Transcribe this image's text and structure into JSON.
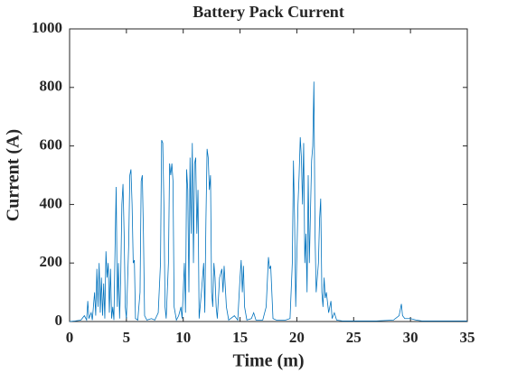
{
  "chart_data": {
    "type": "line",
    "title": "Battery Pack Current",
    "xlabel": "Time (m)",
    "ylabel": "Current (A)",
    "xlim": [
      0,
      35
    ],
    "ylim": [
      0,
      1000
    ],
    "xticks": [
      0,
      5,
      10,
      15,
      20,
      25,
      30,
      35
    ],
    "yticks": [
      0,
      200,
      400,
      600,
      800,
      1000
    ],
    "series": [
      {
        "name": "Current",
        "color": "#0072bd",
        "x": [
          0,
          0.5,
          1,
          1.3,
          1.5,
          1.6,
          1.7,
          1.9,
          2.0,
          2.2,
          2.3,
          2.4,
          2.5,
          2.6,
          2.7,
          2.8,
          2.9,
          3.0,
          3.1,
          3.2,
          3.3,
          3.4,
          3.5,
          3.6,
          3.7,
          3.8,
          3.9,
          4.0,
          4.1,
          4.2,
          4.3,
          4.4,
          4.5,
          4.6,
          4.7,
          4.8,
          4.9,
          5.0,
          5.2,
          5.3,
          5.4,
          5.5,
          5.6,
          5.7,
          5.8,
          6.0,
          6.2,
          6.3,
          6.4,
          6.5,
          6.6,
          6.8,
          7.2,
          7.5,
          7.8,
          8.0,
          8.1,
          8.2,
          8.3,
          8.4,
          8.5,
          8.7,
          8.8,
          8.9,
          9.0,
          9.1,
          9.2,
          9.4,
          9.6,
          9.8,
          9.9,
          10.0,
          10.1,
          10.2,
          10.3,
          10.4,
          10.5,
          10.6,
          10.7,
          10.8,
          10.9,
          11.0,
          11.1,
          11.2,
          11.3,
          11.4,
          11.6,
          11.8,
          11.9,
          12.0,
          12.1,
          12.2,
          12.3,
          12.4,
          12.5,
          12.6,
          12.7,
          12.8,
          12.9,
          13.0,
          13.2,
          13.4,
          13.5,
          13.6,
          13.8,
          14.0,
          14.5,
          14.8,
          15.0,
          15.1,
          15.2,
          15.3,
          15.4,
          15.6,
          16.0,
          16.2,
          16.4,
          17.0,
          17.3,
          17.5,
          17.6,
          17.7,
          17.8,
          17.9,
          18.2,
          19.0,
          19.4,
          19.6,
          19.7,
          19.8,
          19.9,
          20.1,
          20.2,
          20.3,
          20.4,
          20.5,
          20.6,
          20.7,
          20.8,
          20.9,
          21.0,
          21.1,
          21.3,
          21.4,
          21.5,
          21.6,
          21.7,
          21.9,
          22.0,
          22.1,
          22.2,
          22.3,
          22.4,
          22.5,
          22.6,
          22.8,
          23.0,
          23.1,
          23.3,
          23.5,
          24,
          25,
          27,
          28.5,
          29.0,
          29.2,
          29.3,
          29.5,
          30,
          30.5,
          31,
          35
        ],
        "values": [
          0,
          2,
          5,
          20,
          5,
          70,
          10,
          30,
          5,
          100,
          20,
          180,
          50,
          200,
          30,
          150,
          20,
          130,
          10,
          240,
          150,
          200,
          30,
          180,
          10,
          50,
          5,
          250,
          460,
          50,
          200,
          10,
          150,
          400,
          470,
          300,
          50,
          10,
          260,
          500,
          520,
          400,
          200,
          210,
          10,
          5,
          100,
          480,
          500,
          300,
          20,
          5,
          10,
          5,
          30,
          200,
          620,
          610,
          400,
          50,
          10,
          200,
          540,
          500,
          540,
          480,
          50,
          5,
          20,
          50,
          10,
          100,
          200,
          30,
          520,
          450,
          100,
          560,
          300,
          610,
          200,
          540,
          560,
          300,
          450,
          10,
          100,
          200,
          30,
          350,
          590,
          560,
          450,
          500,
          100,
          50,
          200,
          150,
          50,
          10,
          150,
          180,
          100,
          190,
          50,
          5,
          20,
          5,
          150,
          210,
          100,
          190,
          50,
          5,
          10,
          30,
          5,
          5,
          50,
          220,
          180,
          190,
          100,
          10,
          5,
          5,
          10,
          200,
          550,
          350,
          50,
          400,
          500,
          630,
          560,
          400,
          610,
          200,
          300,
          100,
          500,
          200,
          550,
          600,
          820,
          300,
          100,
          200,
          350,
          420,
          100,
          50,
          150,
          80,
          100,
          30,
          70,
          10,
          30,
          5,
          2,
          2,
          2,
          5,
          20,
          60,
          20,
          10,
          10,
          5,
          2,
          2
        ]
      }
    ]
  }
}
